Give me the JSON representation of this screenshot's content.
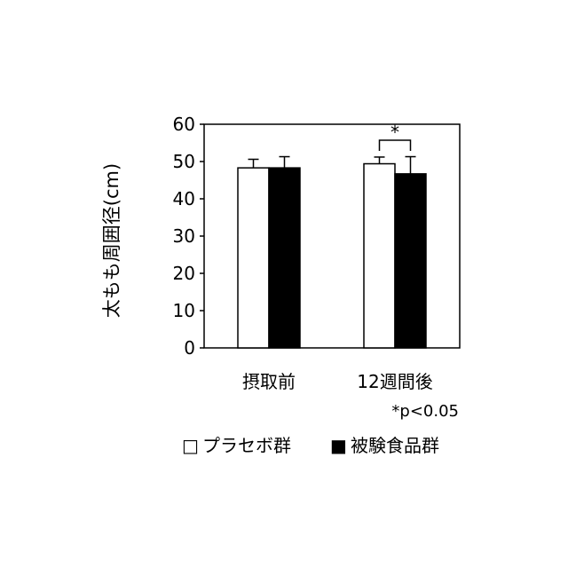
{
  "chart_data": {
    "type": "bar",
    "title": "",
    "xlabel": "",
    "ylabel": "太もも周囲径(cm)",
    "ylim": [
      0,
      60
    ],
    "yticks": [
      0,
      10,
      20,
      30,
      40,
      50,
      60
    ],
    "categories": [
      "摂取前",
      "12週間後"
    ],
    "series": [
      {
        "name": "プラセボ群",
        "color": "#ffffff",
        "values": [
          48.3,
          49.4
        ],
        "errors": [
          2.3,
          1.8
        ]
      },
      {
        "name": "被験食品群",
        "color": "#000000",
        "values": [
          48.3,
          46.7
        ],
        "errors": [
          3.0,
          4.6
        ]
      }
    ],
    "significance": {
      "label": "*",
      "category": "12週間後",
      "note": "*p<0.05"
    },
    "legend": {
      "placement": "bottom",
      "markers": [
        "□",
        "■"
      ]
    },
    "grid": false
  }
}
